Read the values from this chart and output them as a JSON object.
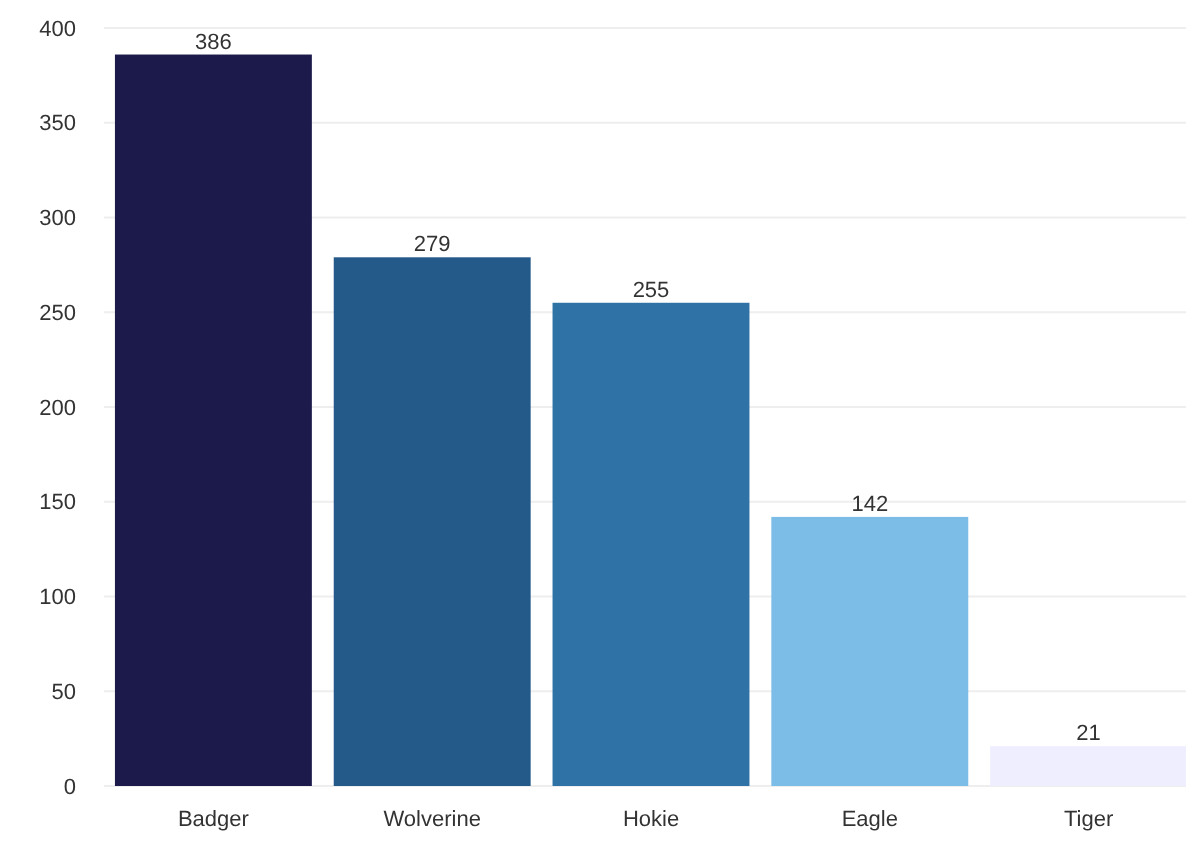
{
  "chart_data": {
    "type": "bar",
    "categories": [
      "Badger",
      "Wolverine",
      "Hokie",
      "Eagle",
      "Tiger"
    ],
    "values": [
      386,
      279,
      255,
      142,
      21
    ],
    "colors": [
      "#1b1a4a",
      "#235a8a",
      "#2e72a6",
      "#7bbde6",
      "#eeeeff"
    ],
    "ylim": [
      0,
      400
    ],
    "yticks": [
      0,
      50,
      100,
      150,
      200,
      250,
      300,
      350,
      400
    ],
    "grid": "y",
    "data_labels": true
  }
}
